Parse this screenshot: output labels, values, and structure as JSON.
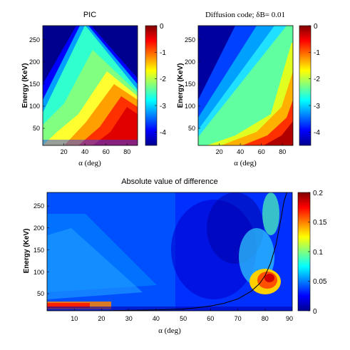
{
  "figure": {
    "panels": [
      {
        "id": "pic",
        "title": "PIC",
        "title_font": "sans",
        "xlabel": "α (deg)",
        "ylabel": "Energy (KeV)",
        "xticks": [
          20,
          40,
          60,
          80
        ],
        "yticks": [
          50,
          100,
          150,
          200,
          250
        ],
        "colorbar": {
          "ticks": [
            "0",
            "-1",
            "-2",
            "-3",
            "-4"
          ],
          "values": [
            0,
            -1,
            -2,
            -3,
            -4
          ],
          "range": [
            -4.5,
            0
          ]
        }
      },
      {
        "id": "diffusion",
        "title": "Diffusion code; δB= 0.01",
        "title_font": "serif",
        "xlabel": "α (deg)",
        "ylabel": "Energy (KeV)",
        "xticks": [
          20,
          40,
          60,
          80
        ],
        "yticks": [
          50,
          100,
          150,
          200,
          250
        ],
        "colorbar": {
          "ticks": [
            "0",
            "-1",
            "-2",
            "-3",
            "-4"
          ],
          "values": [
            0,
            -1,
            -2,
            -3,
            -4
          ],
          "range": [
            -4.5,
            0
          ]
        }
      },
      {
        "id": "difference",
        "title": "Absolute value of difference",
        "title_font": "sans",
        "xlabel": "α (deg)",
        "ylabel": "Energy (KeV)",
        "xticks": [
          10,
          20,
          30,
          40,
          50,
          60,
          70,
          80,
          90
        ],
        "yticks": [
          50,
          100,
          150,
          200,
          250
        ],
        "colorbar": {
          "ticks": [
            "0.2",
            "0.15",
            "0.1",
            "0.05",
            "0"
          ],
          "values": [
            0.2,
            0.15,
            0.1,
            0.05,
            0
          ],
          "range": [
            0,
            0.2
          ]
        }
      }
    ]
  },
  "chart_data": [
    {
      "type": "heatmap",
      "title": "PIC",
      "xlabel": "α (deg)",
      "ylabel": "Energy (KeV)",
      "xlim": [
        0,
        90
      ],
      "ylim": [
        10,
        280
      ],
      "colorscale": "jet",
      "zlim": [
        -4.5,
        0
      ],
      "description_values": {
        "boundary_alpha_deg_at_energy": [
          [
            280,
            30
          ],
          [
            200,
            38
          ],
          [
            150,
            50
          ],
          [
            100,
            60
          ],
          [
            60,
            72
          ],
          [
            30,
            85
          ]
        ]
      }
    },
    {
      "type": "heatmap",
      "title": "Diffusion code; δB= 0.01",
      "xlabel": "α (deg)",
      "ylabel": "Energy (KeV)",
      "xlim": [
        0,
        90
      ],
      "ylim": [
        10,
        280
      ],
      "colorscale": "jet",
      "zlim": [
        -4.5,
        0
      ]
    },
    {
      "type": "heatmap",
      "title": "Absolute value of difference",
      "xlabel": "α (deg)",
      "ylabel": "Energy (KeV)",
      "xlim": [
        0,
        90
      ],
      "ylim": [
        10,
        280
      ],
      "colorscale": "jet",
      "zlim": [
        0,
        0.2
      ],
      "overlay_curve": {
        "x": [
          0,
          20,
          30,
          40,
          50,
          55,
          60,
          65,
          70,
          75,
          78,
          80,
          82,
          84,
          86,
          87,
          88
        ],
        "y": [
          10,
          10,
          11,
          12,
          14,
          17,
          21,
          27,
          37,
          55,
          72,
          90,
          118,
          160,
          225,
          260,
          280
        ]
      }
    }
  ]
}
